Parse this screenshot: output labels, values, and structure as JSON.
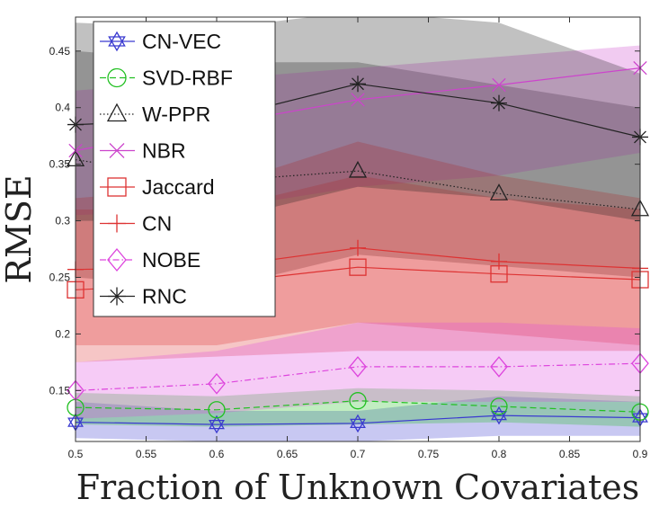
{
  "chart_data": {
    "type": "line",
    "xlabel": "Fraction of Unknown Covariates",
    "ylabel": "RMSE",
    "xlim": [
      0.5,
      0.9
    ],
    "ylim": [
      0.105,
      0.48
    ],
    "x_ticks": [
      0.5,
      0.55,
      0.6,
      0.65,
      0.7,
      0.75,
      0.8,
      0.85,
      0.9
    ],
    "x_tick_labels": [
      "0.5",
      "0.55",
      "0.6",
      "0.65",
      "0.7",
      "0.75",
      "0.8",
      "0.85",
      "0.9"
    ],
    "y_ticks": [
      0.15,
      0.2,
      0.25,
      0.3,
      0.35,
      0.4,
      0.45
    ],
    "y_tick_labels": [
      "0.15",
      "0.2",
      "0.25",
      "0.3",
      "0.35",
      "0.4",
      "0.45"
    ],
    "grid": false,
    "legend_position": "top-left",
    "x": [
      0.5,
      0.6,
      0.7,
      0.8,
      0.9
    ],
    "series": [
      {
        "name": "CN-VEC",
        "color": "#3a3ad0",
        "marker": "hexagram",
        "dash": "solid",
        "values": [
          0.122,
          0.12,
          0.121,
          0.128,
          0.126
        ],
        "band_lower": [
          0.108,
          0.105,
          0.105,
          0.11,
          0.11
        ],
        "band_upper": [
          0.14,
          0.132,
          0.132,
          0.145,
          0.14
        ]
      },
      {
        "name": "SVD-RBF",
        "color": "#22c022",
        "marker": "circle",
        "dash": "dashed",
        "values": [
          0.135,
          0.133,
          0.141,
          0.136,
          0.131
        ],
        "band_lower": [
          0.12,
          0.118,
          0.12,
          0.122,
          0.118
        ],
        "band_upper": [
          0.148,
          0.145,
          0.152,
          0.15,
          0.145
        ]
      },
      {
        "name": "W-PPR",
        "color": "#222222",
        "marker": "triangle",
        "dash": "dotted",
        "values": [
          0.354,
          0.335,
          0.344,
          0.324,
          0.31
        ],
        "band_lower": [
          0.25,
          0.24,
          0.27,
          0.26,
          0.25
        ],
        "band_upper": [
          0.45,
          0.44,
          0.44,
          0.42,
          0.4
        ]
      },
      {
        "name": "NBR",
        "color": "#cc44cc",
        "marker": "x",
        "dash": "solid",
        "values": [
          0.362,
          0.385,
          0.407,
          0.42,
          0.435
        ],
        "band_lower": [
          0.305,
          0.31,
          0.33,
          0.34,
          0.36
        ],
        "band_upper": [
          0.415,
          0.425,
          0.435,
          0.445,
          0.455
        ]
      },
      {
        "name": "Jaccard",
        "color": "#dd3333",
        "marker": "square",
        "dash": "solid",
        "values": [
          0.239,
          0.245,
          0.259,
          0.253,
          0.248
        ],
        "band_lower": [
          0.175,
          0.18,
          0.185,
          0.185,
          0.185
        ],
        "band_upper": [
          0.31,
          0.31,
          0.34,
          0.32,
          0.31
        ]
      },
      {
        "name": "CN",
        "color": "#dd3333",
        "marker": "plus",
        "dash": "solid",
        "values": [
          0.257,
          0.259,
          0.276,
          0.264,
          0.258
        ],
        "band_lower": [
          0.19,
          0.19,
          0.21,
          0.2,
          0.19
        ],
        "band_upper": [
          0.32,
          0.33,
          0.37,
          0.34,
          0.32
        ]
      },
      {
        "name": "NOBE",
        "color": "#dd44dd",
        "marker": "diamond",
        "dash": "dashdot",
        "values": [
          0.15,
          0.156,
          0.171,
          0.171,
          0.174
        ],
        "band_lower": [
          0.125,
          0.13,
          0.14,
          0.14,
          0.14
        ],
        "band_upper": [
          0.175,
          0.185,
          0.21,
          0.21,
          0.205
        ]
      },
      {
        "name": "RNC",
        "color": "#222222",
        "marker": "asterisk",
        "dash": "solid",
        "values": [
          0.385,
          0.39,
          0.421,
          0.404,
          0.374
        ],
        "band_lower": [
          0.3,
          0.3,
          0.33,
          0.32,
          0.3
        ],
        "band_upper": [
          0.475,
          0.47,
          0.485,
          0.475,
          0.43
        ]
      }
    ]
  }
}
